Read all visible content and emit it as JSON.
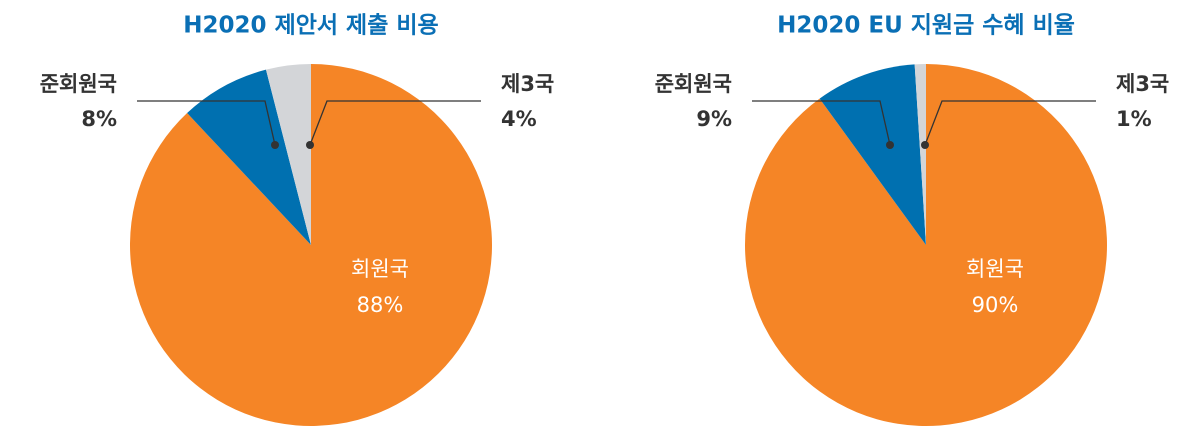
{
  "chart_data": [
    {
      "type": "pie",
      "title": "H2020 제안서 제출 비용",
      "categories": [
        "회원국",
        "준회원국",
        "제3국"
      ],
      "values": [
        88,
        8,
        4
      ],
      "value_labels": [
        "88%",
        "8%",
        "4%"
      ],
      "colors": [
        "#f58526",
        "#0070b0",
        "#d3d5d8"
      ]
    },
    {
      "type": "pie",
      "title": "H2020 EU 지원금 수혜 비율",
      "categories": [
        "회원국",
        "준회원국",
        "제3국"
      ],
      "values": [
        90,
        9,
        1
      ],
      "value_labels": [
        "90%",
        "9%",
        "1%"
      ],
      "colors": [
        "#f58526",
        "#0070b0",
        "#d3d5d8"
      ]
    }
  ]
}
